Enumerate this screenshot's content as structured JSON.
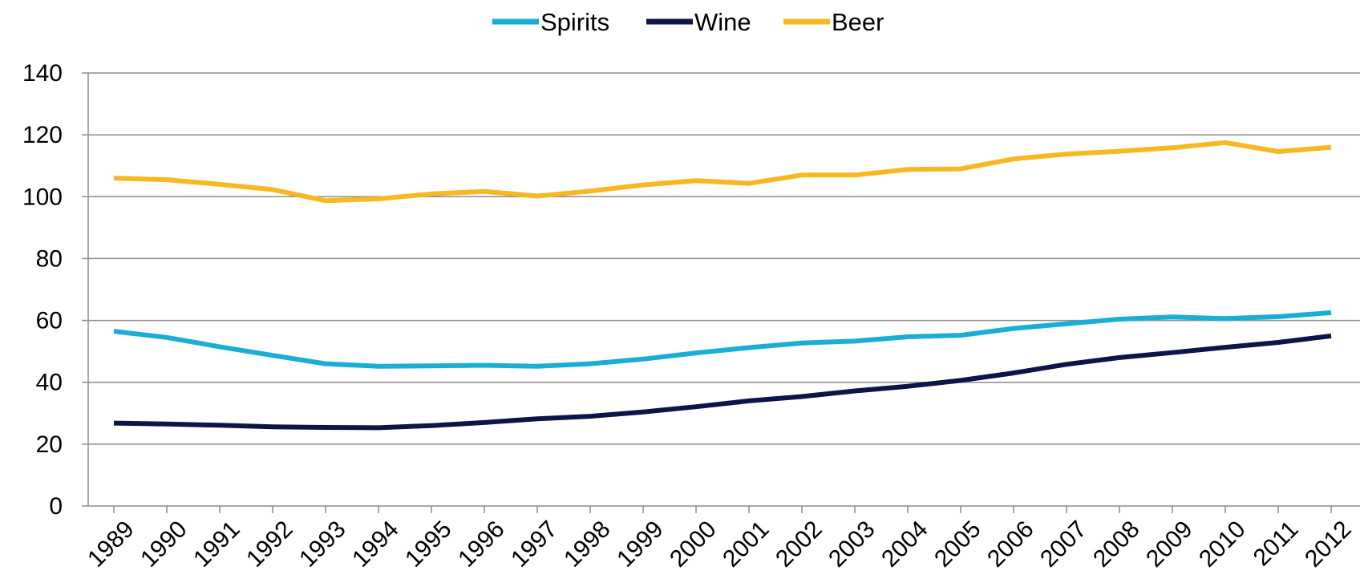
{
  "chart_data": {
    "type": "line",
    "title": "",
    "xlabel": "",
    "ylabel": "",
    "ylim": [
      0,
      140
    ],
    "yticks": [
      0,
      20,
      40,
      60,
      80,
      100,
      120,
      140
    ],
    "grid": true,
    "legend_position": "top-center",
    "categories": [
      "1989",
      "1990",
      "1991",
      "1992",
      "1993",
      "1994",
      "1995",
      "1996",
      "1997",
      "1998",
      "1999",
      "2000",
      "2001",
      "2002",
      "2003",
      "2004",
      "2005",
      "2006",
      "2007",
      "2008",
      "2009",
      "2010",
      "2011",
      "2012"
    ],
    "series": [
      {
        "name": "Spirits",
        "color": "#1aaed6",
        "values": [
          56.5,
          54.5,
          51.5,
          48.7,
          46.0,
          45.2,
          45.3,
          45.5,
          45.2,
          46.0,
          47.5,
          49.5,
          51.2,
          52.7,
          53.3,
          54.7,
          55.2,
          57.4,
          58.9,
          60.4,
          61.1,
          60.6,
          61.2,
          62.5
        ]
      },
      {
        "name": "Wine",
        "color": "#0d1446",
        "values": [
          26.8,
          26.5,
          26.1,
          25.6,
          25.4,
          25.3,
          26.0,
          27.0,
          28.2,
          29.0,
          30.4,
          32.1,
          34.0,
          35.4,
          37.2,
          38.7,
          40.6,
          43.0,
          45.8,
          48.0,
          49.6,
          51.3,
          52.9,
          55.0
        ]
      },
      {
        "name": "Beer",
        "color": "#f7b821",
        "values": [
          106.0,
          105.5,
          104.0,
          102.3,
          98.7,
          99.3,
          100.9,
          101.7,
          100.2,
          101.8,
          103.8,
          105.2,
          104.3,
          107.0,
          107.0,
          108.8,
          109.0,
          112.2,
          113.8,
          114.7,
          115.8,
          117.5,
          114.6,
          116.0
        ]
      }
    ]
  }
}
